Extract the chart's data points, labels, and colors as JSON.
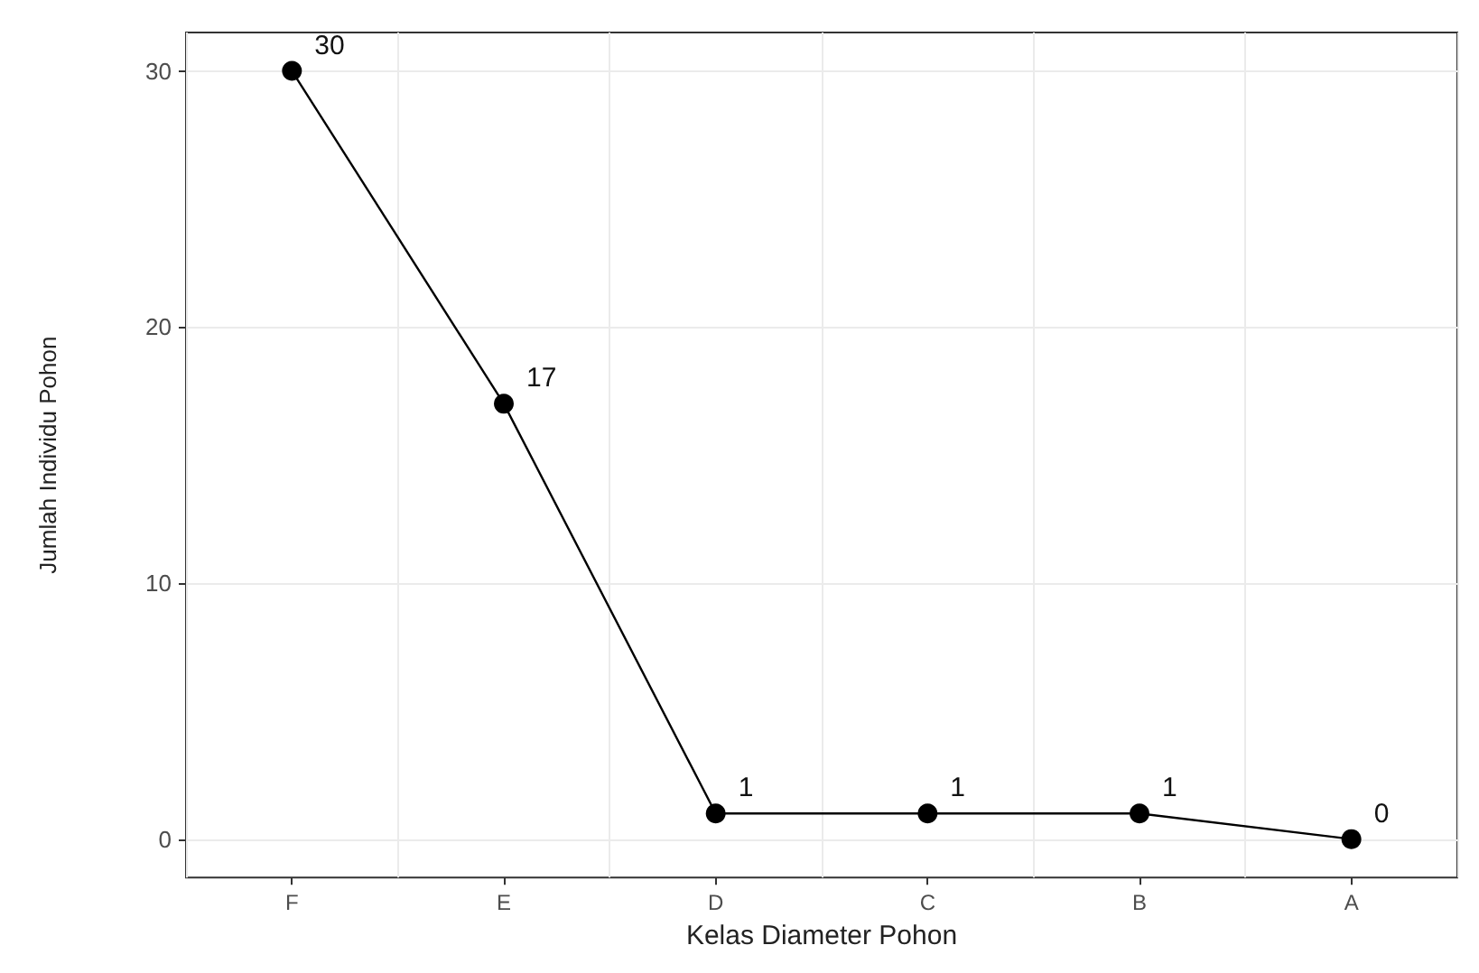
{
  "chart_data": {
    "type": "line",
    "xlabel": "Kelas Diameter Pohon",
    "ylabel": "Jumlah Individu Pohon",
    "categories": [
      "F",
      "E",
      "D",
      "C",
      "B",
      "A"
    ],
    "series": [
      {
        "color": "#000000",
        "values": [
          30,
          17,
          1,
          1,
          1,
          0
        ]
      }
    ],
    "ylim": [
      -1.5,
      31.5
    ],
    "yticks": [
      0,
      10,
      20,
      30
    ],
    "grid": true,
    "marker": "circle",
    "line_style": "solid",
    "data_labels": true
  }
}
